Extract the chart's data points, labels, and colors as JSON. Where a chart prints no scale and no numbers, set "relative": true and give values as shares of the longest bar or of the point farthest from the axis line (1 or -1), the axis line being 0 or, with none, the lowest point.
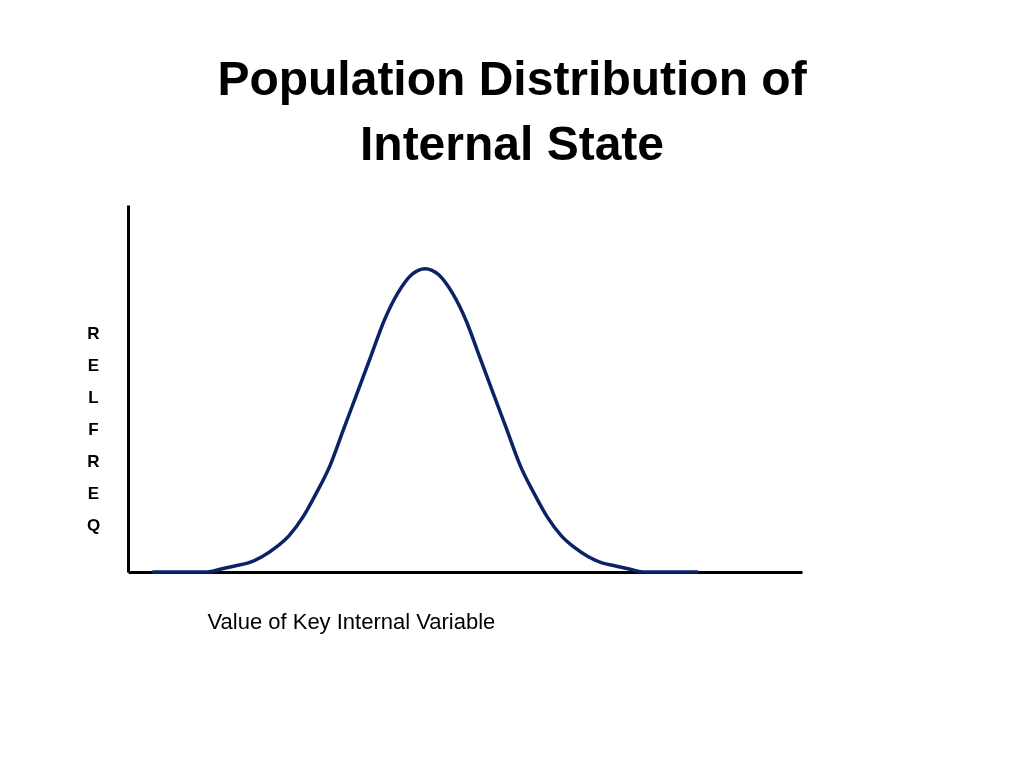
{
  "chart_data": {
    "type": "line",
    "title": "Population Distribution of Internal State",
    "xlabel": "Value of Key Internal Variable",
    "ylabel": "REL FREQ",
    "relative": true,
    "color": "#0b2366",
    "categories": [
      null,
      null,
      null,
      null,
      null,
      null,
      null,
      null,
      null,
      null,
      null,
      null,
      null,
      null,
      null,
      null,
      null,
      null,
      null,
      null,
      null,
      null,
      null,
      null,
      null,
      null,
      null,
      null,
      null,
      null,
      null,
      null,
      null,
      null,
      null,
      null,
      null,
      null,
      null,
      null,
      null
    ],
    "values": [
      0,
      0,
      0,
      0,
      0,
      0.01,
      0.02,
      0.03,
      0.05,
      0.08,
      0.12,
      0.18,
      0.26,
      0.35,
      0.47,
      0.59,
      0.71,
      0.83,
      0.92,
      0.98,
      1,
      0.98,
      0.92,
      0.83,
      0.71,
      0.59,
      0.47,
      0.35,
      0.26,
      0.18,
      0.12,
      0.08,
      0.05,
      0.03,
      0.02,
      0.01,
      0,
      0,
      0,
      0,
      0
    ]
  }
}
